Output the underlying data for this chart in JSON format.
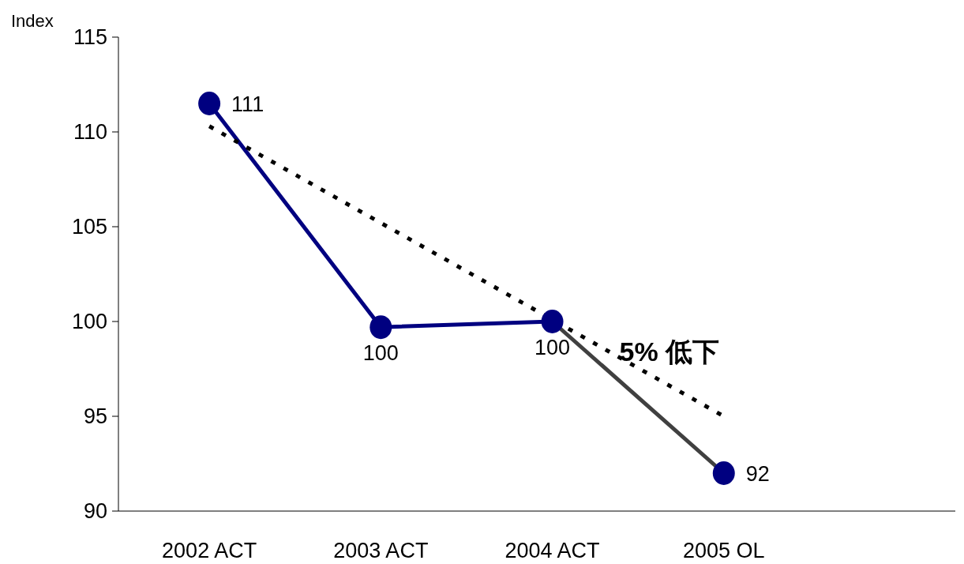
{
  "chart_data": {
    "type": "line",
    "ylabel": "Index",
    "categories": [
      "2002 ACT",
      "2003 ACT",
      "2004 ACT",
      "2005 OL"
    ],
    "ylim": [
      90,
      115
    ],
    "yticks": [
      90,
      95,
      100,
      105,
      110,
      115
    ],
    "grid": false,
    "series": [
      {
        "color": "#000080",
        "values": [
          111.5,
          99.7,
          100,
          null
        ],
        "marker": "none",
        "line_style": "solid"
      },
      {
        "color": "#404040",
        "values": [
          null,
          null,
          100,
          92
        ],
        "marker": "none",
        "line_style": "solid"
      },
      {
        "color": "#000000",
        "values": [
          110.3,
          105.2,
          100.1,
          95.0
        ],
        "marker": "none",
        "line_style": "dotted"
      },
      {
        "type": "scatter",
        "color": "#000080",
        "values": [
          111.5,
          99.7,
          100,
          92
        ],
        "marker": "circle",
        "value_labels": [
          "111",
          "100",
          "100",
          "92"
        ]
      }
    ],
    "annotations": [
      {
        "text": "5% 低下",
        "x": "2004 ACT",
        "y": 99.5
      }
    ]
  }
}
